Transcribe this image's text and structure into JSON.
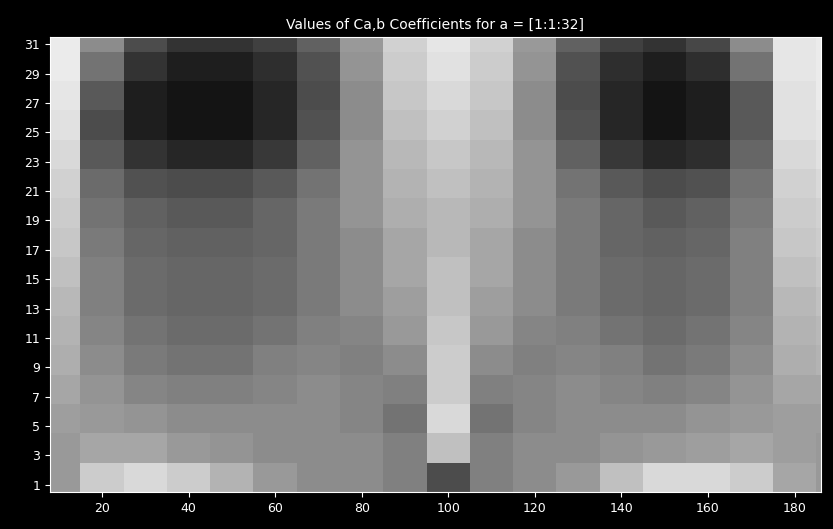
{
  "chart_data": {
    "type": "heatmap",
    "title": "Values of Ca,b Coefficients for a = [1:1:32]",
    "x_edges": [
      5,
      15,
      25,
      35,
      45,
      55,
      65,
      75,
      85,
      95,
      105,
      115,
      125,
      135,
      145,
      155,
      165,
      175,
      185,
      195
    ],
    "y_edges": [
      0.5,
      2.5,
      4.5,
      6.5,
      8.5,
      10.5,
      12.5,
      14.5,
      16.5,
      18.5,
      20.5,
      22.5,
      24.5,
      26.5,
      28.5,
      30.5,
      32.5
    ],
    "cells": [
      [
        0.6,
        0.8,
        0.85,
        0.8,
        0.7,
        0.6,
        0.55,
        0.55,
        0.5,
        0.3,
        0.5,
        0.55,
        0.6,
        0.75,
        0.85,
        0.85,
        0.8,
        0.65,
        0.6
      ],
      [
        0.6,
        0.65,
        0.65,
        0.6,
        0.58,
        0.55,
        0.55,
        0.55,
        0.5,
        0.75,
        0.5,
        0.55,
        0.55,
        0.58,
        0.6,
        0.62,
        0.65,
        0.62,
        0.6
      ],
      [
        0.62,
        0.6,
        0.58,
        0.55,
        0.55,
        0.55,
        0.55,
        0.52,
        0.45,
        0.85,
        0.45,
        0.52,
        0.55,
        0.55,
        0.55,
        0.58,
        0.6,
        0.62,
        0.62
      ],
      [
        0.65,
        0.58,
        0.52,
        0.5,
        0.5,
        0.52,
        0.55,
        0.52,
        0.5,
        0.8,
        0.5,
        0.52,
        0.55,
        0.52,
        0.5,
        0.52,
        0.58,
        0.65,
        0.65
      ],
      [
        0.68,
        0.55,
        0.48,
        0.45,
        0.45,
        0.5,
        0.52,
        0.5,
        0.55,
        0.8,
        0.55,
        0.5,
        0.52,
        0.5,
        0.45,
        0.48,
        0.55,
        0.68,
        0.7
      ],
      [
        0.7,
        0.52,
        0.45,
        0.42,
        0.42,
        0.45,
        0.5,
        0.52,
        0.6,
        0.78,
        0.6,
        0.52,
        0.5,
        0.45,
        0.42,
        0.45,
        0.52,
        0.7,
        0.72
      ],
      [
        0.72,
        0.5,
        0.42,
        0.4,
        0.4,
        0.42,
        0.48,
        0.55,
        0.62,
        0.75,
        0.62,
        0.55,
        0.48,
        0.42,
        0.4,
        0.42,
        0.5,
        0.72,
        0.75
      ],
      [
        0.75,
        0.5,
        0.42,
        0.4,
        0.4,
        0.42,
        0.48,
        0.55,
        0.65,
        0.75,
        0.65,
        0.55,
        0.48,
        0.42,
        0.4,
        0.42,
        0.5,
        0.75,
        0.78
      ],
      [
        0.78,
        0.48,
        0.4,
        0.38,
        0.38,
        0.4,
        0.48,
        0.55,
        0.65,
        0.72,
        0.65,
        0.55,
        0.48,
        0.4,
        0.38,
        0.4,
        0.5,
        0.78,
        0.8
      ],
      [
        0.8,
        0.45,
        0.38,
        0.35,
        0.35,
        0.4,
        0.48,
        0.58,
        0.68,
        0.72,
        0.68,
        0.58,
        0.48,
        0.4,
        0.35,
        0.38,
        0.48,
        0.8,
        0.82
      ],
      [
        0.82,
        0.42,
        0.32,
        0.3,
        0.3,
        0.35,
        0.45,
        0.58,
        0.7,
        0.75,
        0.7,
        0.58,
        0.45,
        0.35,
        0.3,
        0.32,
        0.45,
        0.82,
        0.85
      ],
      [
        0.85,
        0.35,
        0.2,
        0.15,
        0.15,
        0.22,
        0.38,
        0.58,
        0.72,
        0.78,
        0.72,
        0.58,
        0.38,
        0.22,
        0.15,
        0.18,
        0.4,
        0.85,
        0.88
      ],
      [
        0.88,
        0.3,
        0.12,
        0.08,
        0.08,
        0.15,
        0.32,
        0.55,
        0.75,
        0.82,
        0.75,
        0.55,
        0.32,
        0.15,
        0.08,
        0.12,
        0.35,
        0.88,
        0.9
      ],
      [
        0.9,
        0.35,
        0.12,
        0.08,
        0.08,
        0.15,
        0.3,
        0.55,
        0.78,
        0.85,
        0.78,
        0.55,
        0.3,
        0.15,
        0.08,
        0.12,
        0.35,
        0.88,
        0.92
      ],
      [
        0.92,
        0.45,
        0.2,
        0.12,
        0.12,
        0.18,
        0.32,
        0.58,
        0.8,
        0.88,
        0.8,
        0.58,
        0.32,
        0.18,
        0.12,
        0.18,
        0.45,
        0.9,
        0.92
      ],
      [
        0.92,
        0.55,
        0.3,
        0.2,
        0.2,
        0.25,
        0.38,
        0.6,
        0.82,
        0.9,
        0.82,
        0.6,
        0.38,
        0.25,
        0.2,
        0.28,
        0.55,
        0.9,
        0.92
      ]
    ],
    "color_range": [
      0,
      1
    ],
    "xlim": [
      8,
      186
    ],
    "xticks": [
      20,
      40,
      60,
      80,
      100,
      120,
      140,
      160,
      180
    ],
    "ylim": [
      0.5,
      31.5
    ],
    "yticks": [
      1,
      3,
      5,
      7,
      9,
      11,
      13,
      15,
      17,
      19,
      21,
      23,
      25,
      27,
      29,
      31
    ]
  }
}
